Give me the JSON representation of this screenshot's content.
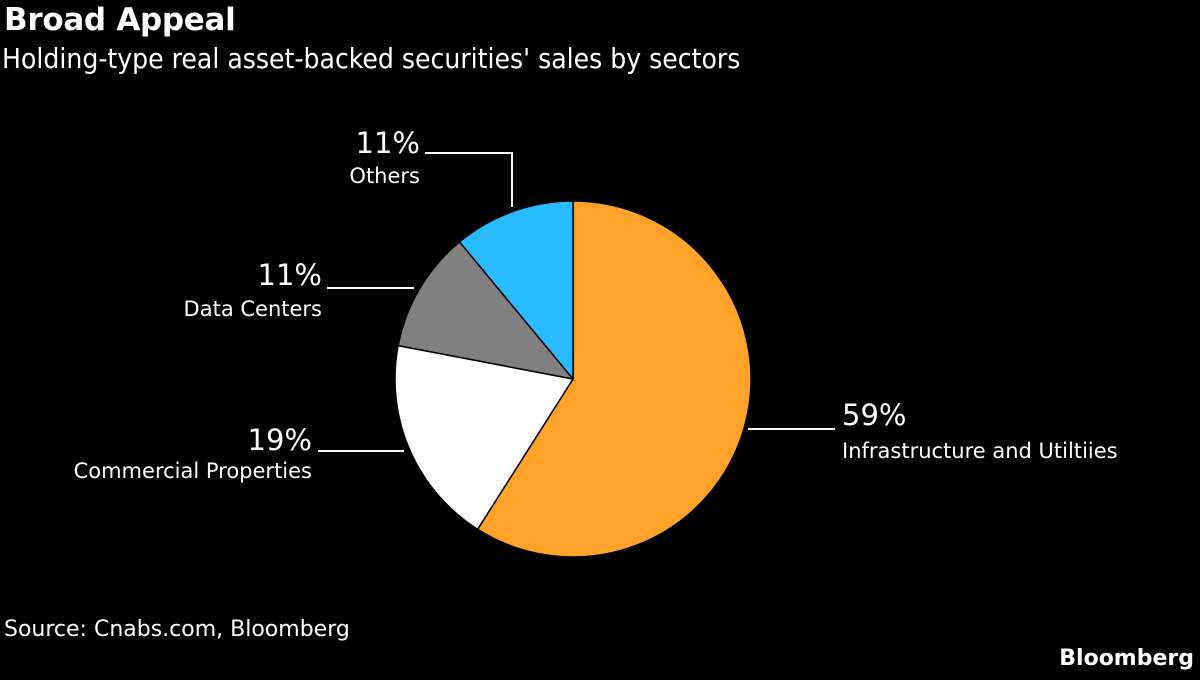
{
  "header": {
    "title": "Broad Appeal",
    "subtitle": "Holding-type real asset-backed securities' sales by sectors"
  },
  "footer": {
    "source": "Source: Cnabs.com, Bloomberg",
    "brand": "Bloomberg"
  },
  "chart_data": {
    "type": "pie",
    "title": "Broad Appeal",
    "subtitle": "Holding-type real asset-backed securities' sales by sectors",
    "unit": "%",
    "start": "12 o'clock, clockwise",
    "slices": [
      {
        "label": "Infrastructure and Utiltiies",
        "value": 59,
        "display": "59%",
        "color": "#ffa229"
      },
      {
        "label": "Commercial Properties",
        "value": 19,
        "display": "19%",
        "color": "#ffffff"
      },
      {
        "label": "Data Centers",
        "value": 11,
        "display": "11%",
        "color": "#808080"
      },
      {
        "label": "Others",
        "value": 11,
        "display": "11%",
        "color": "#29baff"
      }
    ]
  }
}
